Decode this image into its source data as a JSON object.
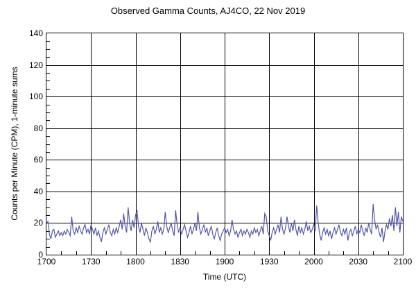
{
  "page": {
    "background": "#ffffff",
    "text_color": "#000000"
  },
  "chart_data": {
    "type": "line",
    "title": "Observed Gamma Counts, AJ4CO, 22 Nov 2019",
    "xlabel": "Time (UTC)",
    "ylabel": "Counts per Minute (CPM), 1-minute sums",
    "grid": true,
    "legend": "none",
    "axis_color": "#000000",
    "grid_color": "#000000",
    "line_color": "#5456a8",
    "ylim": [
      0,
      140
    ],
    "y_ticks": [
      0,
      20,
      40,
      60,
      80,
      100,
      120,
      140
    ],
    "y_minor_step": 5,
    "x_ticks": [
      "1700",
      "1730",
      "1800",
      "1830",
      "1900",
      "1930",
      "2000",
      "2030",
      "2100"
    ],
    "x_tick_minutes": [
      0,
      30,
      60,
      90,
      120,
      150,
      180,
      210,
      240
    ],
    "x_minor_step_min": 10,
    "x_range_minutes": [
      0,
      240
    ],
    "series": [
      {
        "name": "gamma-counts-1min-sums",
        "x_start": "1700",
        "x_step_minutes": 1,
        "values": [
          20,
          21,
          13,
          10,
          15,
          16,
          11,
          13,
          15,
          12,
          14,
          12,
          15,
          13,
          16,
          14,
          12,
          24,
          15,
          13,
          17,
          14,
          18,
          15,
          13,
          17,
          19,
          14,
          16,
          13,
          19,
          16,
          13,
          17,
          12,
          15,
          11,
          8,
          14,
          17,
          13,
          16,
          19,
          14,
          12,
          16,
          13,
          17,
          14,
          18,
          22,
          16,
          26,
          18,
          14,
          30,
          20,
          15,
          22,
          17,
          25,
          28,
          18,
          14,
          20,
          16,
          12,
          17,
          14,
          10,
          8,
          15,
          18,
          13,
          16,
          21,
          14,
          17,
          13,
          16,
          27,
          18,
          14,
          17,
          20,
          15,
          12,
          28,
          19,
          14,
          17,
          13,
          16,
          19,
          15,
          11,
          14,
          18,
          13,
          16,
          20,
          15,
          27,
          17,
          13,
          16,
          19,
          14,
          17,
          12,
          15,
          18,
          13,
          10,
          14,
          17,
          12,
          9,
          13,
          15,
          17,
          14,
          16,
          12,
          15,
          22,
          16,
          13,
          15,
          11,
          14,
          16,
          12,
          15,
          13,
          16,
          14,
          11,
          15,
          13,
          17,
          14,
          16,
          12,
          15,
          18,
          13,
          26,
          24,
          15,
          12,
          9,
          14,
          17,
          13,
          16,
          19,
          14,
          24,
          16,
          13,
          17,
          24,
          18,
          14,
          20,
          15,
          22,
          16,
          12,
          18,
          14,
          17,
          13,
          16,
          21,
          15,
          18,
          14,
          16,
          19,
          15,
          31,
          20,
          13,
          9,
          14,
          17,
          13,
          16,
          12,
          15,
          10,
          14,
          17,
          13,
          16,
          19,
          14,
          12,
          16,
          13,
          17,
          9,
          14,
          16,
          12,
          15,
          18,
          13,
          16,
          14,
          19,
          15,
          12,
          17,
          14,
          20,
          16,
          13,
          32,
          22,
          16,
          19,
          14,
          11,
          17,
          8,
          15,
          19,
          16,
          23,
          18,
          25,
          15,
          30,
          18,
          27,
          14,
          24,
          21
        ]
      }
    ]
  }
}
